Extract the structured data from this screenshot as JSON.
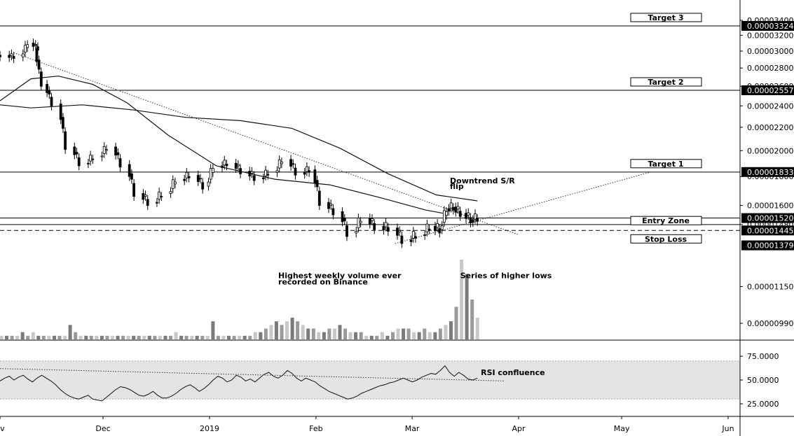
{
  "chart_data": {
    "type": "candlestick",
    "price_axis": {
      "scale": "log",
      "range": [
        8.6e-06,
        3.55e-05
      ],
      "ticks": [
        "0.00003400",
        "0.00003200",
        "0.00003000",
        "0.00002800",
        "0.00002600",
        "0.00002400",
        "0.00002200",
        "0.00002000",
        "0.00001800",
        "0.00001600",
        "0.00001480",
        "0.00001150",
        "0.00000990"
      ],
      "tick_values": [
        3.4e-05,
        3.2e-05,
        3e-05,
        2.8e-05,
        2.6e-05,
        2.4e-05,
        2.2e-05,
        2e-05,
        1.8e-05,
        1.6e-05,
        1.48e-05,
        1.15e-05,
        9.9e-06
      ]
    },
    "highlighted_levels": [
      {
        "value": 3.324e-05,
        "label": "0.00003324"
      },
      {
        "value": 2.557e-05,
        "label": "0.00002557"
      },
      {
        "value": 1.833e-05,
        "label": "0.00001833"
      },
      {
        "value": 1.52e-05,
        "label": "0.00001520"
      },
      {
        "value": 1.445e-05,
        "label": "0.00001445"
      },
      {
        "value": 1.379e-05,
        "label": "0.00001379"
      }
    ],
    "horizontal_lines": [
      {
        "value": 3.324e-05,
        "style": "solid"
      },
      {
        "value": 2.557e-05,
        "style": "solid"
      },
      {
        "value": 1.833e-05,
        "style": "solid"
      },
      {
        "value": 1.52e-05,
        "style": "solid"
      },
      {
        "value": 1.48e-05,
        "style": "solid"
      },
      {
        "value": 1.445e-05,
        "style": "dashed"
      }
    ],
    "x_axis": {
      "labels": [
        {
          "label": "ov",
          "date": "2018-11-01"
        },
        {
          "label": "Dec",
          "date": "2018-12-01"
        },
        {
          "label": "2019",
          "date": "2019-01-01"
        },
        {
          "label": "Feb",
          "date": "2019-02-01"
        },
        {
          "label": "Mar",
          "date": "2019-03-01"
        },
        {
          "label": "Apr",
          "date": "2019-04-01"
        },
        {
          "label": "May",
          "date": "2019-05-01"
        },
        {
          "label": "Jun",
          "date": "2019-06-01"
        }
      ]
    },
    "target_boxes": [
      {
        "label": "Target 3",
        "value": 3.324e-05
      },
      {
        "label": "Target 2",
        "value": 2.557e-05
      },
      {
        "label": "Target 1",
        "value": 1.833e-05
      },
      {
        "label": "Entry Zone",
        "value": 1.52e-05
      },
      {
        "label": "Stop Loss",
        "value": 1.445e-05
      }
    ],
    "annotations": [
      {
        "text": "Downtrend S/R",
        "date": "2019-03-12",
        "value": 1.75e-05
      },
      {
        "text": "flip",
        "date": "2019-03-12",
        "value": 1.71e-05
      },
      {
        "text": "Highest weekly volume ever",
        "date": "2019-01-21",
        "value": 1.19e-05
      },
      {
        "text": "recorded on Binance",
        "date": "2019-01-21",
        "value": 1.16e-05
      },
      {
        "text": "Series of higher lows",
        "date": "2019-03-15",
        "value": 1.19e-05
      },
      {
        "text": "RSI confluence",
        "date": "2019-03-21",
        "rsi": 55
      }
    ],
    "price_series": [
      {
        "date": "2018-11-01",
        "close": 2.95e-05
      },
      {
        "date": "2018-11-05",
        "close": 2.93e-05
      },
      {
        "date": "2018-11-09",
        "close": 3.1e-05
      },
      {
        "date": "2018-11-12",
        "close": 3.03e-05
      },
      {
        "date": "2018-11-13",
        "close": 2.62e-05
      },
      {
        "date": "2018-11-16",
        "close": 2.42e-05
      },
      {
        "date": "2018-11-20",
        "close": 2.03e-05
      },
      {
        "date": "2018-11-24",
        "close": 1.9e-05
      },
      {
        "date": "2018-11-28",
        "close": 1.95e-05
      },
      {
        "date": "2018-12-02",
        "close": 2.03e-05
      },
      {
        "date": "2018-12-06",
        "close": 1.89e-05
      },
      {
        "date": "2018-12-10",
        "close": 1.68e-05
      },
      {
        "date": "2018-12-14",
        "close": 1.62e-05
      },
      {
        "date": "2018-12-18",
        "close": 1.68e-05
      },
      {
        "date": "2018-12-22",
        "close": 1.78e-05
      },
      {
        "date": "2018-12-26",
        "close": 1.81e-05
      },
      {
        "date": "2018-12-30",
        "close": 1.73e-05
      },
      {
        "date": "2019-01-02",
        "close": 1.88e-05
      },
      {
        "date": "2019-01-06",
        "close": 1.9e-05
      },
      {
        "date": "2019-01-10",
        "close": 1.84e-05
      },
      {
        "date": "2019-01-14",
        "close": 1.79e-05
      },
      {
        "date": "2019-01-18",
        "close": 1.83e-05
      },
      {
        "date": "2019-01-22",
        "close": 1.93e-05
      },
      {
        "date": "2019-01-26",
        "close": 1.83e-05
      },
      {
        "date": "2019-01-30",
        "close": 1.85e-05
      },
      {
        "date": "2019-02-02",
        "close": 1.62e-05
      },
      {
        "date": "2019-02-06",
        "close": 1.56e-05
      },
      {
        "date": "2019-02-10",
        "close": 1.43e-05
      },
      {
        "date": "2019-02-14",
        "close": 1.52e-05
      },
      {
        "date": "2019-02-18",
        "close": 1.47e-05
      },
      {
        "date": "2019-02-22",
        "close": 1.46e-05
      },
      {
        "date": "2019-02-26",
        "close": 1.39e-05
      },
      {
        "date": "2019-03-02",
        "close": 1.42e-05
      },
      {
        "date": "2019-03-06",
        "close": 1.47e-05
      },
      {
        "date": "2019-03-09",
        "close": 1.45e-05
      },
      {
        "date": "2019-03-11",
        "close": 1.58e-05
      },
      {
        "date": "2019-03-13",
        "close": 1.59e-05
      },
      {
        "date": "2019-03-15",
        "close": 1.55e-05
      },
      {
        "date": "2019-03-18",
        "close": 1.51e-05
      },
      {
        "date": "2019-03-20",
        "close": 1.52e-05
      }
    ],
    "moving_averages": [
      {
        "points": [
          {
            "date": "2018-11-01",
            "value": 2.45e-05
          },
          {
            "date": "2018-11-10",
            "value": 2.68e-05
          },
          {
            "date": "2018-11-18",
            "value": 2.71e-05
          },
          {
            "date": "2018-11-28",
            "value": 2.62e-05
          },
          {
            "date": "2018-12-08",
            "value": 2.43e-05
          },
          {
            "date": "2018-12-20",
            "value": 2.13e-05
          },
          {
            "date": "2019-01-03",
            "value": 1.88e-05
          },
          {
            "date": "2019-01-20",
            "value": 1.78e-05
          },
          {
            "date": "2019-02-05",
            "value": 1.74e-05
          },
          {
            "date": "2019-02-20",
            "value": 1.65e-05
          },
          {
            "date": "2019-03-05",
            "value": 1.57e-05
          },
          {
            "date": "2019-03-10",
            "value": 1.55e-05
          }
        ]
      },
      {
        "points": [
          {
            "date": "2018-11-01",
            "value": 2.41e-05
          },
          {
            "date": "2018-11-10",
            "value": 2.38e-05
          },
          {
            "date": "2018-11-25",
            "value": 2.41e-05
          },
          {
            "date": "2018-12-10",
            "value": 2.36e-05
          },
          {
            "date": "2018-12-25",
            "value": 2.29e-05
          },
          {
            "date": "2019-01-10",
            "value": 2.26e-05
          },
          {
            "date": "2019-01-25",
            "value": 2.19e-05
          },
          {
            "date": "2019-02-08",
            "value": 2.02e-05
          },
          {
            "date": "2019-02-22",
            "value": 1.82e-05
          },
          {
            "date": "2019-03-08",
            "value": 1.67e-05
          },
          {
            "date": "2019-03-20",
            "value": 1.63e-05
          }
        ]
      }
    ],
    "volume": [
      1,
      1,
      1,
      1,
      2,
      1,
      2,
      1,
      1,
      1,
      1,
      1,
      1,
      4,
      2,
      1,
      1,
      1,
      1,
      1,
      1,
      1,
      1,
      1,
      1,
      1,
      1,
      1,
      1,
      1,
      1,
      1,
      1,
      2,
      1,
      1,
      1,
      1,
      1,
      1,
      5,
      1,
      1,
      1,
      1,
      1,
      1,
      1,
      2,
      2,
      3,
      4,
      5,
      4,
      5,
      6,
      5,
      4,
      3,
      3,
      2,
      2,
      3,
      3,
      4,
      3,
      2,
      2,
      2,
      1,
      1,
      1,
      2,
      1,
      2,
      3,
      3,
      3,
      2,
      2,
      3,
      2,
      2,
      3,
      4,
      5,
      9,
      22,
      18,
      11,
      6
    ],
    "rsi": {
      "range": [
        0,
        100
      ],
      "ticks": [
        "75.0000",
        "50.0000",
        "25.0000"
      ],
      "tick_values": [
        75,
        50,
        25
      ],
      "band": [
        30,
        70
      ],
      "values": [
        49,
        52,
        54,
        50,
        53,
        55,
        51,
        48,
        52,
        55,
        52,
        49,
        45,
        40,
        36,
        33,
        31,
        30,
        32,
        34,
        30,
        29,
        28,
        32,
        36,
        40,
        43,
        42,
        40,
        37,
        34,
        33,
        35,
        38,
        34,
        31,
        31,
        33,
        36,
        40,
        43,
        45,
        42,
        38,
        41,
        45,
        50,
        54,
        52,
        48,
        50,
        55,
        53,
        49,
        51,
        48,
        52,
        56,
        58,
        54,
        52,
        55,
        60,
        57,
        52,
        49,
        52,
        50,
        48,
        44,
        41,
        38,
        36,
        34,
        32,
        30,
        31,
        33,
        36,
        38,
        40,
        42,
        44,
        45,
        47,
        48,
        50,
        52,
        50,
        48,
        50,
        53,
        55,
        57,
        56,
        60,
        65,
        58,
        54,
        58,
        55,
        51,
        50,
        52
      ]
    }
  }
}
